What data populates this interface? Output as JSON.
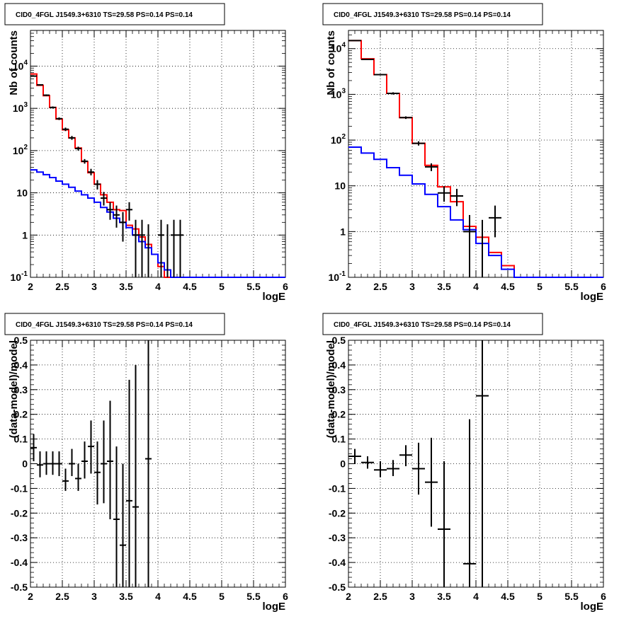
{
  "chart_data": [
    {
      "type": "step-histogram",
      "title": "CID0_4FGL J1549.3+6310 TS=29.58 PS=0.14 PS=0.14",
      "xlabel": "logE",
      "ylabel": "Nb of counts",
      "xlim": [
        2,
        6
      ],
      "ylim": [
        0.1,
        70000
      ],
      "yscale": "log",
      "grid": true,
      "xticks": [
        "2",
        "2.5",
        "3",
        "3.5",
        "4",
        "4.5",
        "5",
        "5.5",
        "6"
      ],
      "yticks": [
        {
          "v": 0.1,
          "b": "10",
          "e": "-1"
        },
        {
          "v": 1,
          "b": "1",
          "e": ""
        },
        {
          "v": 10,
          "b": "10",
          "e": ""
        },
        {
          "v": 100,
          "b": "10",
          "e": "2"
        },
        {
          "v": 1000,
          "b": "10",
          "e": "3"
        },
        {
          "v": 10000,
          "b": "10",
          "e": "4"
        }
      ],
      "bin_edges": [
        2,
        2.1,
        2.2,
        2.3,
        2.4,
        2.5,
        2.6,
        2.7,
        2.8,
        2.9,
        3,
        3.1,
        3.2,
        3.3,
        3.4,
        3.5,
        3.6,
        3.7,
        3.8,
        3.9,
        4,
        4.1,
        4.2,
        4.3,
        4.4,
        4.5,
        4.6,
        4.7,
        4.8,
        4.9,
        5,
        5.1,
        5.2,
        5.3,
        5.4,
        5.5,
        5.6,
        5.7,
        5.8,
        5.9,
        6
      ],
      "series": [
        {
          "color": "#ff0000",
          "values": [
            6500,
            3500,
            2000,
            1050,
            560,
            310,
            200,
            115,
            55,
            30,
            16,
            9,
            6,
            4,
            3.8,
            1.7,
            1.4,
            0.9,
            0.6,
            0.35,
            0.18,
            0.1,
            0.1,
            0.1,
            0.1,
            0.1,
            0.1,
            0.1,
            0.1,
            0.1,
            0.1,
            0.1,
            0.1,
            0.1,
            0.1,
            0.1,
            0.1,
            0.1,
            0.1,
            0.1
          ]
        },
        {
          "color": "#0000ff",
          "values": [
            35,
            31,
            27,
            23,
            19,
            16,
            13.5,
            11,
            9,
            7.5,
            6,
            4.5,
            3.5,
            2.5,
            2,
            1.5,
            1,
            0.7,
            0.5,
            0.35,
            0.22,
            0.15,
            0.1,
            0.1,
            0.1,
            0.1,
            0.1,
            0.1,
            0.1,
            0.1,
            0.1,
            0.1,
            0.1,
            0.1,
            0.1,
            0.1,
            0.1,
            0.1,
            0.1,
            0.1
          ]
        }
      ],
      "points": [
        {
          "x": 2.05,
          "y": 5800,
          "lo": 5650,
          "hi": 5950
        },
        {
          "x": 2.15,
          "y": 3600,
          "lo": 3480,
          "hi": 3720
        },
        {
          "x": 2.25,
          "y": 2050,
          "lo": 1960,
          "hi": 2140
        },
        {
          "x": 2.35,
          "y": 1050,
          "lo": 990,
          "hi": 1110
        },
        {
          "x": 2.45,
          "y": 570,
          "lo": 530,
          "hi": 610
        },
        {
          "x": 2.55,
          "y": 320,
          "lo": 290,
          "hi": 350
        },
        {
          "x": 2.65,
          "y": 200,
          "lo": 180,
          "hi": 222
        },
        {
          "x": 2.75,
          "y": 112,
          "lo": 100,
          "hi": 124
        },
        {
          "x": 2.85,
          "y": 56,
          "lo": 49,
          "hi": 63
        },
        {
          "x": 2.95,
          "y": 31,
          "lo": 26,
          "hi": 37
        },
        {
          "x": 3.05,
          "y": 16,
          "lo": 12,
          "hi": 20
        },
        {
          "x": 3.15,
          "y": 7.5,
          "lo": 5,
          "hi": 10.5
        },
        {
          "x": 3.25,
          "y": 4,
          "lo": 2.3,
          "hi": 6
        },
        {
          "x": 3.35,
          "y": 3,
          "lo": 1.5,
          "hi": 5
        },
        {
          "x": 3.45,
          "y": 2,
          "lo": 0.7,
          "hi": 3.5
        },
        {
          "x": 3.55,
          "y": 4,
          "lo": 2.2,
          "hi": 6
        },
        {
          "x": 3.65,
          "y": 1,
          "lo": 0.1,
          "hi": 2.3
        },
        {
          "x": 3.75,
          "y": 1,
          "lo": 0.1,
          "hi": 2.3
        },
        {
          "x": 3.85,
          "y": 0.04,
          "lo": 0.04,
          "hi": 1.8
        },
        {
          "x": 4.05,
          "y": 1,
          "lo": 0.1,
          "hi": 2.3
        },
        {
          "x": 4.15,
          "y": 0.04,
          "lo": 0.04,
          "hi": 1.8
        },
        {
          "x": 4.25,
          "y": 1,
          "lo": 0.1,
          "hi": 2.3
        },
        {
          "x": 4.35,
          "y": 1,
          "lo": 0.1,
          "hi": 2.3
        }
      ]
    },
    {
      "type": "step-histogram",
      "title": "CID0_4FGL J1549.3+6310 TS=29.58 PS=0.14 PS=0.14",
      "xlabel": "logE",
      "ylabel": "Nb of counts",
      "xlim": [
        2,
        6
      ],
      "ylim": [
        0.1,
        25000
      ],
      "yscale": "log",
      "grid": true,
      "xticks": [
        "2",
        "2.5",
        "3",
        "3.5",
        "4",
        "4.5",
        "5",
        "5.5",
        "6"
      ],
      "yticks": [
        {
          "v": 0.1,
          "b": "10",
          "e": "-1"
        },
        {
          "v": 1,
          "b": "1",
          "e": ""
        },
        {
          "v": 10,
          "b": "10",
          "e": ""
        },
        {
          "v": 100,
          "b": "10",
          "e": "2"
        },
        {
          "v": 1000,
          "b": "10",
          "e": "3"
        },
        {
          "v": 10000,
          "b": "10",
          "e": "4"
        }
      ],
      "bin_edges": [
        2,
        2.2,
        2.4,
        2.6,
        2.8,
        3,
        3.2,
        3.4,
        3.6,
        3.8,
        4,
        4.2,
        4.4,
        4.6,
        4.8,
        5,
        5.2,
        5.4,
        5.6,
        5.8,
        6
      ],
      "series": [
        {
          "color": "#ff0000",
          "values": [
            15000,
            6000,
            2700,
            1050,
            310,
            85,
            28,
            9.5,
            4.5,
            1.3,
            0.75,
            0.35,
            0.18,
            0.1,
            0.1,
            0.1,
            0.1,
            0.1,
            0.1,
            0.1
          ]
        },
        {
          "color": "#0000ff",
          "values": [
            70,
            52,
            38,
            25,
            17,
            11,
            6.5,
            3.5,
            1.8,
            1.1,
            0.55,
            0.3,
            0.15,
            0.1,
            0.1,
            0.1,
            0.1,
            0.1,
            0.1,
            0.1
          ]
        }
      ],
      "points": [
        {
          "x": 2.1,
          "y": 15000,
          "lo": 14700,
          "hi": 15300
        },
        {
          "x": 2.3,
          "y": 5800,
          "lo": 5600,
          "hi": 6000
        },
        {
          "x": 2.5,
          "y": 2700,
          "lo": 2600,
          "hi": 2800
        },
        {
          "x": 2.7,
          "y": 1050,
          "lo": 990,
          "hi": 1110
        },
        {
          "x": 2.9,
          "y": 310,
          "lo": 290,
          "hi": 330
        },
        {
          "x": 3.1,
          "y": 85,
          "lo": 76,
          "hi": 94
        },
        {
          "x": 3.3,
          "y": 26,
          "lo": 21,
          "hi": 31
        },
        {
          "x": 3.5,
          "y": 7,
          "lo": 4.5,
          "hi": 9.8
        },
        {
          "x": 3.7,
          "y": 6,
          "lo": 3.6,
          "hi": 8.6
        },
        {
          "x": 3.9,
          "y": 1,
          "lo": 0.04,
          "hi": 2.3
        },
        {
          "x": 4.1,
          "y": 0.04,
          "lo": 0.04,
          "hi": 1.8
        },
        {
          "x": 4.3,
          "y": 2,
          "lo": 0.75,
          "hi": 3.7
        }
      ]
    },
    {
      "type": "scatter",
      "title": "CID0_4FGL J1549.3+6310 TS=29.58 PS=0.14 PS=0.14",
      "xlabel": "logE",
      "ylabel": "(data-model)/model",
      "xlim": [
        2,
        6
      ],
      "ylim": [
        -0.5,
        0.5
      ],
      "yscale": "linear",
      "grid": true,
      "xticks": [
        "2",
        "2.5",
        "3",
        "3.5",
        "4",
        "4.5",
        "5",
        "5.5",
        "6"
      ],
      "yticks": [
        "-0.5",
        "-0.4",
        "-0.3",
        "-0.2",
        "-0.1",
        "0",
        "0.1",
        "0.2",
        "0.3",
        "0.4",
        "0.5"
      ],
      "xhalf": 0.05,
      "points": [
        {
          "x": 2.05,
          "y": 0.065,
          "lo": 0.01,
          "hi": 0.12
        },
        {
          "x": 2.15,
          "y": -0.005,
          "lo": -0.055,
          "hi": 0.05
        },
        {
          "x": 2.25,
          "y": 0.0,
          "lo": -0.045,
          "hi": 0.05
        },
        {
          "x": 2.35,
          "y": 0.0,
          "lo": -0.045,
          "hi": 0.05
        },
        {
          "x": 2.45,
          "y": 0.0,
          "lo": -0.05,
          "hi": 0.05
        },
        {
          "x": 2.55,
          "y": -0.07,
          "lo": -0.11,
          "hi": -0.02
        },
        {
          "x": 2.65,
          "y": 0.0,
          "lo": -0.05,
          "hi": 0.06
        },
        {
          "x": 2.75,
          "y": -0.06,
          "lo": -0.11,
          "hi": 0.0
        },
        {
          "x": 2.85,
          "y": 0.01,
          "lo": -0.06,
          "hi": 0.09
        },
        {
          "x": 2.95,
          "y": 0.07,
          "lo": -0.04,
          "hi": 0.175
        },
        {
          "x": 3.05,
          "y": -0.035,
          "lo": -0.165,
          "hi": 0.09
        },
        {
          "x": 3.15,
          "y": 0.0,
          "lo": -0.16,
          "hi": 0.175
        },
        {
          "x": 3.25,
          "y": 0.01,
          "lo": -0.225,
          "hi": 0.255
        },
        {
          "x": 3.35,
          "y": -0.225,
          "lo": -0.5,
          "hi": 0.07
        },
        {
          "x": 3.45,
          "y": -0.33,
          "lo": -0.5,
          "hi": 0.0
        },
        {
          "x": 3.55,
          "y": -0.15,
          "lo": -0.5,
          "hi": 0.34
        },
        {
          "x": 3.65,
          "y": -0.175,
          "lo": -0.5,
          "hi": 0.4
        },
        {
          "x": 3.85,
          "y": 0.02,
          "lo": -0.5,
          "hi": 0.5
        }
      ]
    },
    {
      "type": "scatter",
      "title": "CID0_4FGL J1549.3+6310 TS=29.58 PS=0.14 PS=0.14",
      "xlabel": "logE",
      "ylabel": "(data-model)/model",
      "xlim": [
        2,
        6
      ],
      "ylim": [
        -0.5,
        0.5
      ],
      "yscale": "linear",
      "grid": true,
      "xticks": [
        "2",
        "2.5",
        "3",
        "3.5",
        "4",
        "4.5",
        "5",
        "5.5",
        "6"
      ],
      "yticks": [
        "-0.5",
        "-0.4",
        "-0.3",
        "-0.2",
        "-0.1",
        "0",
        "0.1",
        "0.2",
        "0.3",
        "0.4",
        "0.5"
      ],
      "xhalf": 0.1,
      "points": [
        {
          "x": 2.1,
          "y": 0.03,
          "lo": 0.0,
          "hi": 0.06
        },
        {
          "x": 2.3,
          "y": 0.005,
          "lo": -0.02,
          "hi": 0.03
        },
        {
          "x": 2.5,
          "y": -0.025,
          "lo": -0.055,
          "hi": 0.01
        },
        {
          "x": 2.7,
          "y": -0.02,
          "lo": -0.05,
          "hi": 0.015
        },
        {
          "x": 2.9,
          "y": 0.035,
          "lo": -0.01,
          "hi": 0.075
        },
        {
          "x": 3.1,
          "y": -0.02,
          "lo": -0.125,
          "hi": 0.085
        },
        {
          "x": 3.3,
          "y": -0.075,
          "lo": -0.255,
          "hi": 0.105
        },
        {
          "x": 3.5,
          "y": -0.265,
          "lo": -0.5,
          "hi": 0.01
        },
        {
          "x": 3.9,
          "y": -0.405,
          "lo": -0.5,
          "hi": 0.18
        },
        {
          "x": 4.1,
          "y": 0.275,
          "lo": -0.5,
          "hi": 0.5
        }
      ]
    }
  ]
}
